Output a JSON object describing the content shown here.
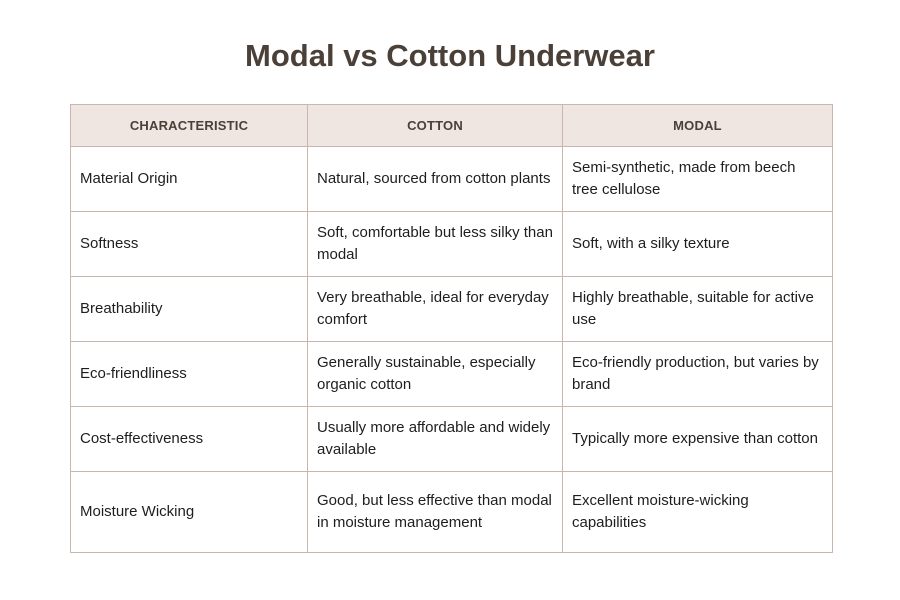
{
  "title": "Modal vs Cotton Underwear",
  "columns": [
    "CHARACTERISTIC",
    "COTTON",
    "MODAL"
  ],
  "rows": [
    [
      "Material Origin",
      "Natural, sourced from cotton plants",
      "Semi-synthetic, made from beech tree cellulose"
    ],
    [
      "Softness",
      "Soft, comfortable but less silky than modal",
      "Soft, with a silky texture"
    ],
    [
      "Breathability",
      "Very breathable, ideal for everyday comfort",
      "Highly breathable, suitable for active use"
    ],
    [
      "Eco-friendliness",
      "Generally sustainable, especially organic cotton",
      "Eco-friendly production, but varies by brand"
    ],
    [
      "Cost-effectiveness",
      "Usually more affordable and widely available",
      "Typically more expensive than cotton"
    ],
    [
      "Moisture Wicking",
      "Good, but less effective than modal in moisture management",
      "Excellent moisture-wicking capabilities"
    ]
  ],
  "colors": {
    "header_bg": "#efe6e2",
    "border": "#c9b7ad",
    "title": "#4a4038"
  }
}
